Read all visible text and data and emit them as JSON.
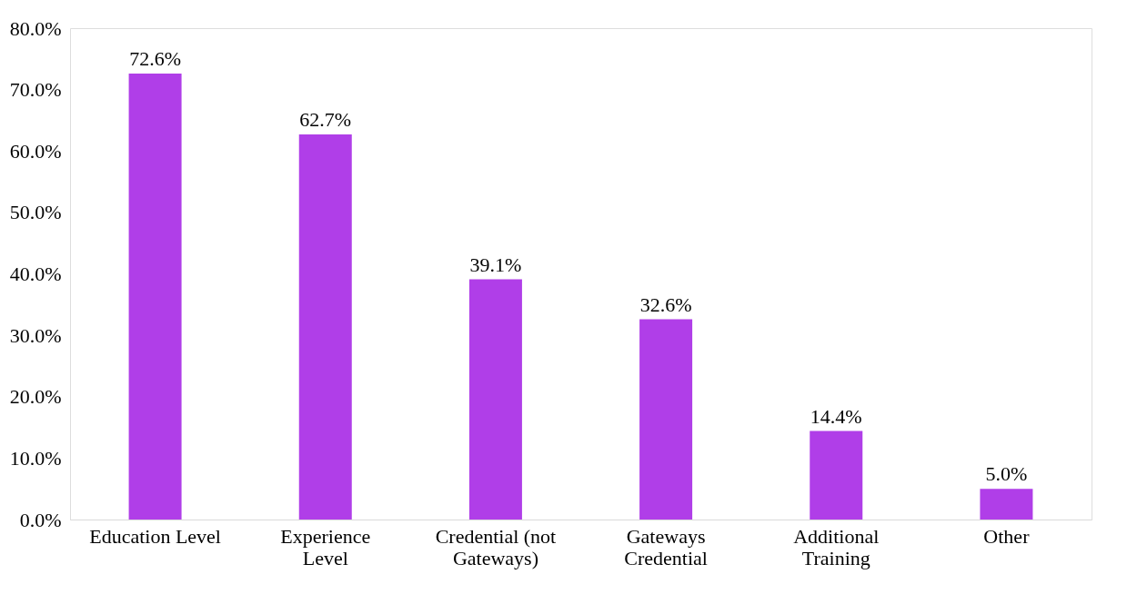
{
  "chart_data": {
    "type": "bar",
    "categories": [
      "Education Level",
      "Experience Level",
      "Credential (not Gateways)",
      "Gateways Credential",
      "Additional Training",
      "Other"
    ],
    "values": [
      72.6,
      62.7,
      39.1,
      32.6,
      14.4,
      5.0
    ],
    "value_labels": [
      "72.6%",
      "62.7%",
      "39.1%",
      "32.6%",
      "14.4%",
      "5.0%"
    ],
    "color": "#b03ee8",
    "ylim": [
      0,
      80
    ],
    "yticks": [
      {
        "value": 0,
        "label": "0.0%"
      },
      {
        "value": 10,
        "label": "10.0%"
      },
      {
        "value": 20,
        "label": "20.0%"
      },
      {
        "value": 30,
        "label": "30.0%"
      },
      {
        "value": 40,
        "label": "40.0%"
      },
      {
        "value": 50,
        "label": "50.0%"
      },
      {
        "value": 60,
        "label": "60.0%"
      },
      {
        "value": 70,
        "label": "70.0%"
      },
      {
        "value": 80,
        "label": "80.0%"
      }
    ],
    "grid": false
  }
}
